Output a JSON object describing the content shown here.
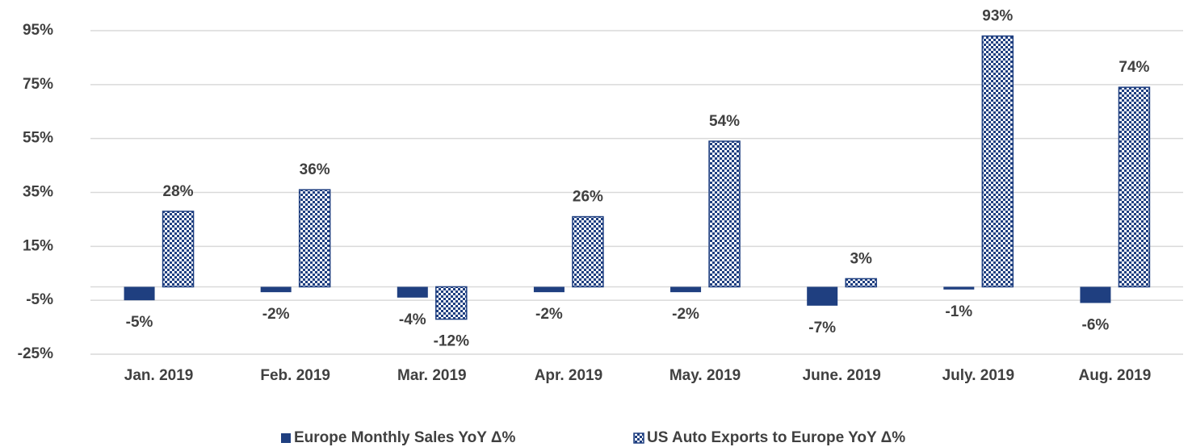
{
  "chart_data": {
    "type": "bar",
    "categories": [
      "Jan. 2019",
      "Feb. 2019",
      "Mar. 2019",
      "Apr. 2019",
      "May. 2019",
      "June. 2019",
      "July. 2019",
      "Aug. 2019"
    ],
    "series": [
      {
        "name": "Europe Monthly Sales YoY Δ%",
        "color": "#1f3f80",
        "fill": "solid",
        "values": [
          -5,
          -2,
          -4,
          -2,
          -2,
          -7,
          -1,
          -6
        ],
        "value_labels": [
          "-5%",
          "-2%",
          "-4%",
          "-2%",
          "-2%",
          "-7%",
          "-1%",
          "-6%"
        ]
      },
      {
        "name": "US Auto Exports to Europe YoY Δ%",
        "color": "#1f3f80",
        "fill": "checker",
        "values": [
          28,
          36,
          -12,
          26,
          54,
          3,
          93,
          74
        ],
        "value_labels": [
          "28%",
          "36%",
          "-12%",
          "26%",
          "54%",
          "3%",
          "93%",
          "74%"
        ]
      }
    ],
    "ylim": [
      -25,
      95
    ],
    "yticks": [
      {
        "value": -25,
        "label": "-25%"
      },
      {
        "value": -5,
        "label": "-5%"
      },
      {
        "value": 15,
        "label": "15%"
      },
      {
        "value": 35,
        "label": "35%"
      },
      {
        "value": 55,
        "label": "55%"
      },
      {
        "value": 75,
        "label": "75%"
      },
      {
        "value": 95,
        "label": "95%"
      }
    ],
    "grid": true,
    "legend": "bottom"
  }
}
